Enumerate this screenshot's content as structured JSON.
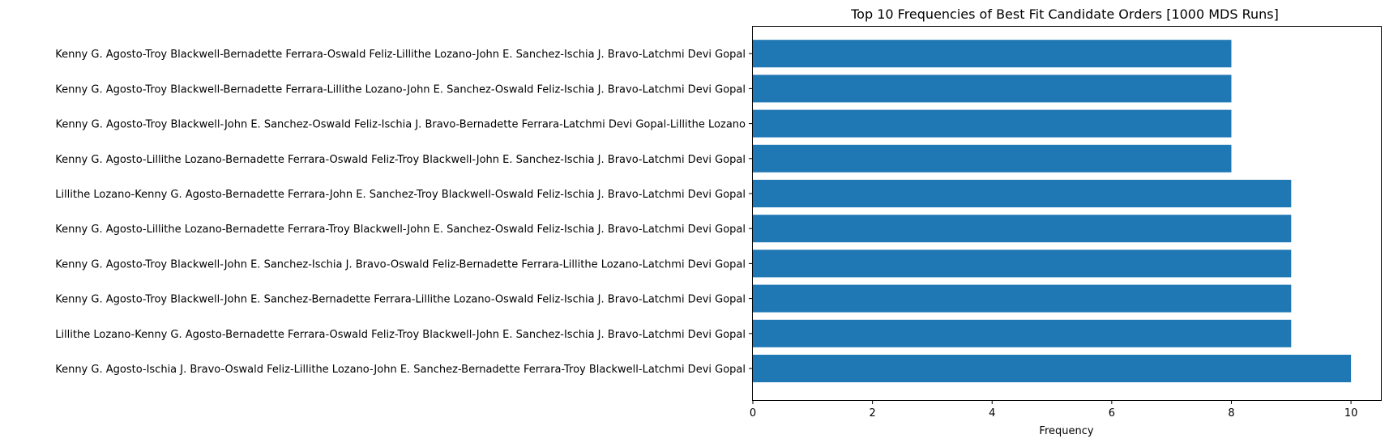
{
  "chart_data": {
    "type": "bar",
    "orientation": "horizontal",
    "title": "Top 10 Frequencies of Best Fit Candidate Orders [1000 MDS Runs]",
    "xlabel": "Frequency",
    "ylabel": "",
    "xlim": [
      0,
      10.5
    ],
    "xticks": [
      0,
      2,
      4,
      6,
      8,
      10
    ],
    "grid": false,
    "bar_color": "#1f77b4",
    "categories": [
      "Kenny G. Agosto-Ischia J. Bravo-Oswald Feliz-Lillithe Lozano-John E. Sanchez-Bernadette Ferrara-Troy Blackwell-Latchmi Devi Gopal",
      "Lillithe Lozano-Kenny G. Agosto-Bernadette Ferrara-Oswald Feliz-Troy Blackwell-John E. Sanchez-Ischia J. Bravo-Latchmi Devi Gopal",
      "Kenny G. Agosto-Troy Blackwell-John E. Sanchez-Bernadette Ferrara-Lillithe Lozano-Oswald Feliz-Ischia J. Bravo-Latchmi Devi Gopal",
      "Kenny G. Agosto-Troy Blackwell-John E. Sanchez-Ischia J. Bravo-Oswald Feliz-Bernadette Ferrara-Lillithe Lozano-Latchmi Devi Gopal",
      "Kenny G. Agosto-Lillithe Lozano-Bernadette Ferrara-Troy Blackwell-John E. Sanchez-Oswald Feliz-Ischia J. Bravo-Latchmi Devi Gopal",
      "Lillithe Lozano-Kenny G. Agosto-Bernadette Ferrara-John E. Sanchez-Troy Blackwell-Oswald Feliz-Ischia J. Bravo-Latchmi Devi Gopal",
      "Kenny G. Agosto-Lillithe Lozano-Bernadette Ferrara-Oswald Feliz-Troy Blackwell-John E. Sanchez-Ischia J. Bravo-Latchmi Devi Gopal",
      "Kenny G. Agosto-Troy Blackwell-John E. Sanchez-Oswald Feliz-Ischia J. Bravo-Bernadette Ferrara-Latchmi Devi Gopal-Lillithe Lozano",
      "Kenny G. Agosto-Troy Blackwell-Bernadette Ferrara-Lillithe Lozano-John E. Sanchez-Oswald Feliz-Ischia J. Bravo-Latchmi Devi Gopal",
      "Kenny G. Agosto-Troy Blackwell-Bernadette Ferrara-Oswald Feliz-Lillithe Lozano-John E. Sanchez-Ischia J. Bravo-Latchmi Devi Gopal"
    ],
    "values": [
      10,
      9,
      9,
      9,
      9,
      9,
      8,
      8,
      8,
      8
    ]
  }
}
